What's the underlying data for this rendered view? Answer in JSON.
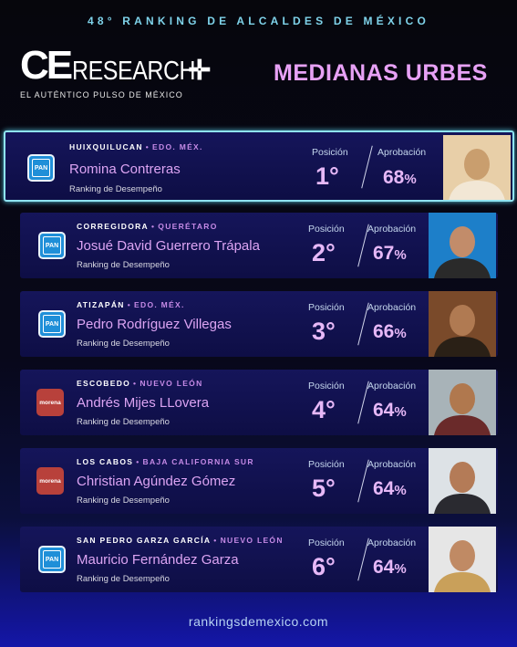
{
  "banner": "48° RANKING DE ALCALDES DE MÉXICO",
  "logo": {
    "ce": "CE",
    "research": "RESEARCH",
    "tagline": "EL AUTÉNTICO PULSO DE MÉXICO"
  },
  "category": "MEDIANAS URBES",
  "labels": {
    "position": "Posición",
    "approval": "Aprobación",
    "ranking": "Ranking de Desempeño"
  },
  "mayors": [
    {
      "municipality": "HUIXQUILUCAN",
      "state": "EDO. MÉX.",
      "name": "Romina Contreras",
      "position": "1°",
      "approval": "68",
      "party": "PAN"
    },
    {
      "municipality": "CORREGIDORA",
      "state": "QUERÉTARO",
      "name": "Josué David Guerrero Trápala",
      "position": "2°",
      "approval": "67",
      "party": "PAN"
    },
    {
      "municipality": "ATIZAPÁN",
      "state": "EDO. MÉX.",
      "name": "Pedro Rodríguez Villegas",
      "position": "3°",
      "approval": "66",
      "party": "PAN"
    },
    {
      "municipality": "ESCOBEDO",
      "state": "NUEVO LEÓN",
      "name": "Andrés Mijes LLovera",
      "position": "4°",
      "approval": "64",
      "party": "morena"
    },
    {
      "municipality": "LOS CABOS",
      "state": "BAJA CALIFORNIA SUR",
      "name": "Christian Agúndez Gómez",
      "position": "5°",
      "approval": "64",
      "party": "morena"
    },
    {
      "municipality": "SAN PEDRO GARZA GARCÍA",
      "state": "NUEVO LEÓN",
      "name": "Mauricio Fernández Garza",
      "position": "6°",
      "approval": "64",
      "party": "PAN"
    }
  ],
  "percent_sign": "%",
  "dot": "•",
  "footer": "rankingsdemexico.com"
}
